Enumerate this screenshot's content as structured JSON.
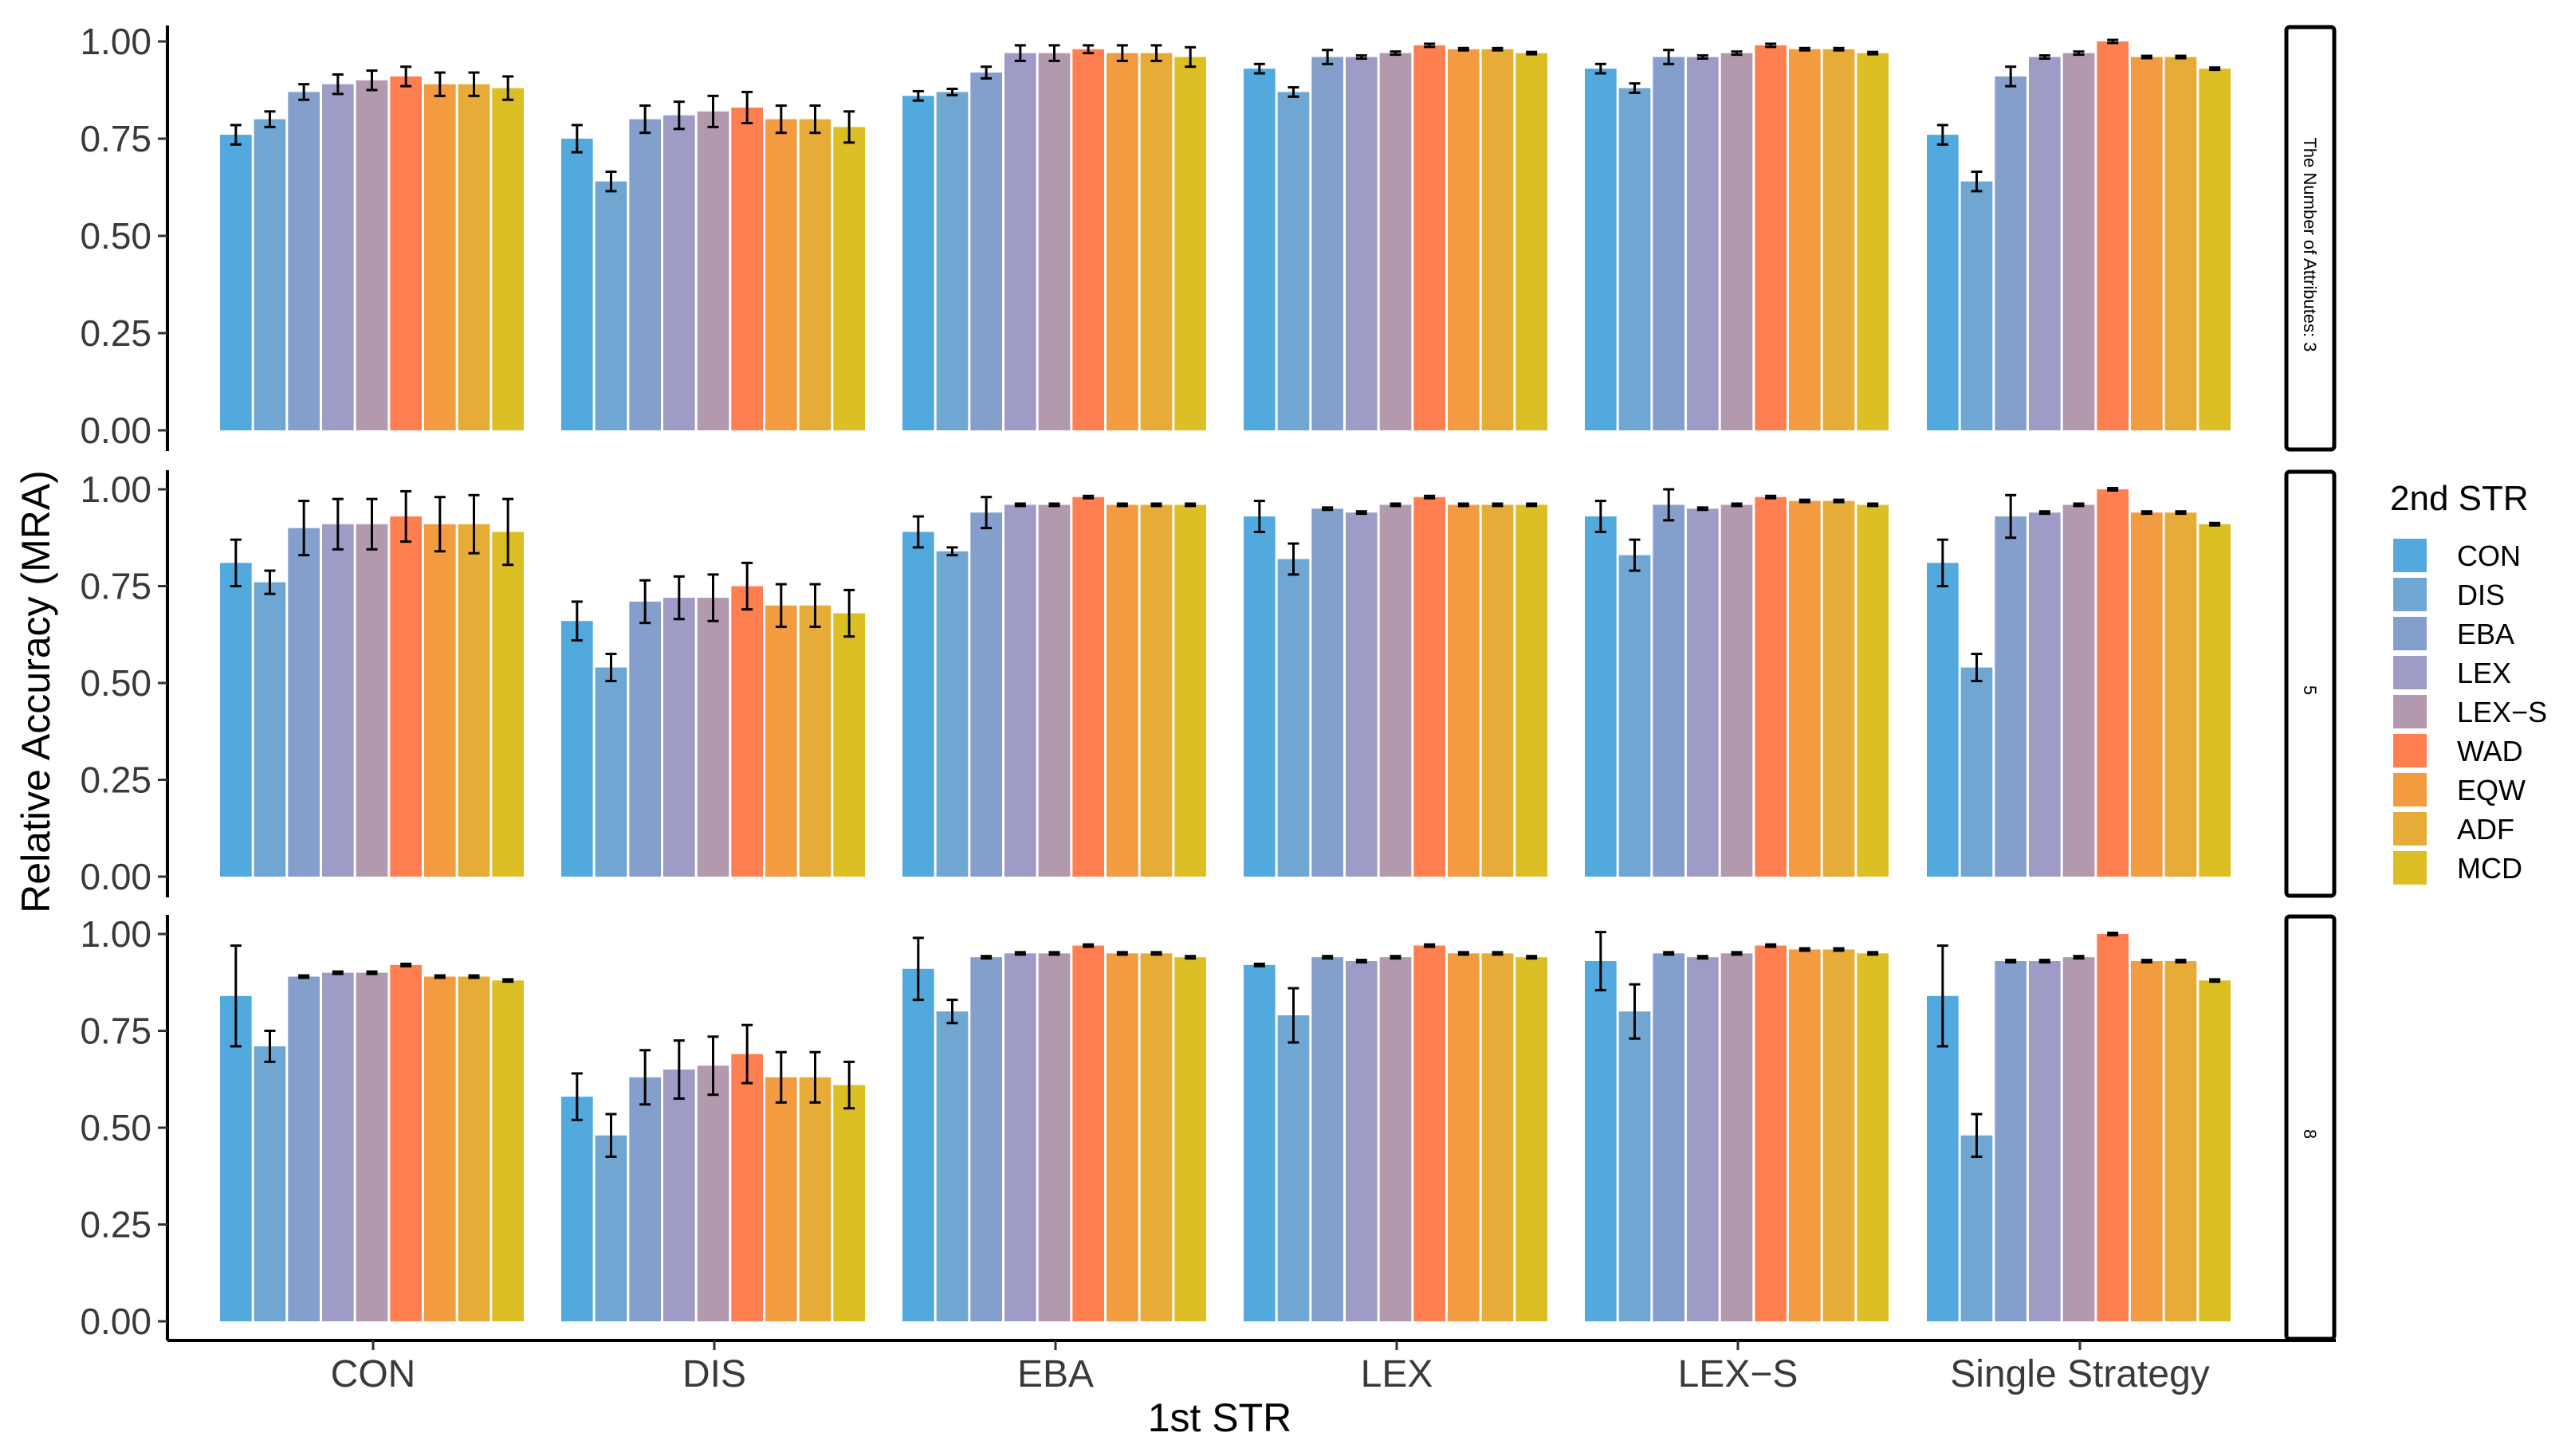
{
  "chart_data": {
    "type": "bar",
    "facet": "rows",
    "xlabel": "1st STR",
    "ylabel": "Relative Accuracy (MRA)",
    "ylim": [
      0,
      1
    ],
    "yticks": [
      "0.00",
      "0.25",
      "0.50",
      "0.75",
      "1.00"
    ],
    "categories": [
      "CON",
      "DIS",
      "EBA",
      "LEX",
      "LEX−S",
      "Single Strategy"
    ],
    "legend": {
      "title": "2nd STR",
      "position": "right",
      "items": [
        {
          "name": "CON",
          "color": "#52A9DD"
        },
        {
          "name": "DIS",
          "color": "#6FA6D2"
        },
        {
          "name": "EBA",
          "color": "#859FCC"
        },
        {
          "name": "LEX",
          "color": "#9E9CC6"
        },
        {
          "name": "LEX−S",
          "color": "#B399AE"
        },
        {
          "name": "WAD",
          "color": "#FF7F50"
        },
        {
          "name": "EQW",
          "color": "#F29B41"
        },
        {
          "name": "ADF",
          "color": "#E6AC37"
        },
        {
          "name": "MCD",
          "color": "#DCBF24"
        }
      ]
    },
    "panels": [
      {
        "strip": "The Number of Attributes: 3",
        "values": [
          [
            0.76,
            0.8,
            0.87,
            0.89,
            0.9,
            0.91,
            0.89,
            0.89,
            0.88
          ],
          [
            0.75,
            0.64,
            0.8,
            0.81,
            0.82,
            0.83,
            0.8,
            0.8,
            0.78
          ],
          [
            0.86,
            0.87,
            0.92,
            0.97,
            0.97,
            0.98,
            0.97,
            0.97,
            0.96
          ],
          [
            0.93,
            0.87,
            0.96,
            0.96,
            0.97,
            0.99,
            0.98,
            0.98,
            0.97
          ],
          [
            0.93,
            0.88,
            0.96,
            0.96,
            0.97,
            0.99,
            0.98,
            0.98,
            0.97
          ],
          [
            0.76,
            0.64,
            0.91,
            0.96,
            0.97,
            1.0,
            0.96,
            0.96,
            0.93
          ]
        ],
        "errors": [
          [
            0.025,
            0.02,
            0.02,
            0.025,
            0.025,
            0.025,
            0.03,
            0.03,
            0.03
          ],
          [
            0.035,
            0.025,
            0.035,
            0.035,
            0.04,
            0.04,
            0.035,
            0.035,
            0.04
          ],
          [
            0.012,
            0.008,
            0.015,
            0.02,
            0.02,
            0.01,
            0.02,
            0.02,
            0.025
          ],
          [
            0.012,
            0.012,
            0.018,
            0.004,
            0.004,
            0.004,
            0.003,
            0.003,
            0.003
          ],
          [
            0.012,
            0.012,
            0.018,
            0.004,
            0.004,
            0.004,
            0.003,
            0.003,
            0.003
          ],
          [
            0.025,
            0.025,
            0.025,
            0.004,
            0.004,
            0.004,
            0.003,
            0.003,
            0.003
          ]
        ]
      },
      {
        "strip": "5",
        "values": [
          [
            0.81,
            0.76,
            0.9,
            0.91,
            0.91,
            0.93,
            0.91,
            0.91,
            0.89
          ],
          [
            0.66,
            0.54,
            0.71,
            0.72,
            0.72,
            0.75,
            0.7,
            0.7,
            0.68
          ],
          [
            0.89,
            0.84,
            0.94,
            0.96,
            0.96,
            0.98,
            0.96,
            0.96,
            0.96
          ],
          [
            0.93,
            0.82,
            0.95,
            0.94,
            0.96,
            0.98,
            0.96,
            0.96,
            0.96
          ],
          [
            0.93,
            0.83,
            0.96,
            0.95,
            0.96,
            0.98,
            0.97,
            0.97,
            0.96
          ],
          [
            0.81,
            0.54,
            0.93,
            0.94,
            0.96,
            1.0,
            0.94,
            0.94,
            0.91
          ]
        ],
        "errors": [
          [
            0.06,
            0.03,
            0.07,
            0.065,
            0.065,
            0.065,
            0.07,
            0.075,
            0.085
          ],
          [
            0.05,
            0.035,
            0.055,
            0.055,
            0.06,
            0.06,
            0.055,
            0.055,
            0.06
          ],
          [
            0.04,
            0.01,
            0.04,
            0.003,
            0.003,
            0.003,
            0.003,
            0.003,
            0.003
          ],
          [
            0.04,
            0.04,
            0.003,
            0.003,
            0.003,
            0.003,
            0.003,
            0.003,
            0.003
          ],
          [
            0.04,
            0.04,
            0.04,
            0.003,
            0.003,
            0.003,
            0.003,
            0.003,
            0.003
          ],
          [
            0.06,
            0.035,
            0.055,
            0.003,
            0.003,
            0.003,
            0.003,
            0.003,
            0.003
          ]
        ]
      },
      {
        "strip": "8",
        "values": [
          [
            0.84,
            0.71,
            0.89,
            0.9,
            0.9,
            0.92,
            0.89,
            0.89,
            0.88
          ],
          [
            0.58,
            0.48,
            0.63,
            0.65,
            0.66,
            0.69,
            0.63,
            0.63,
            0.61
          ],
          [
            0.91,
            0.8,
            0.94,
            0.95,
            0.95,
            0.97,
            0.95,
            0.95,
            0.94
          ],
          [
            0.92,
            0.79,
            0.94,
            0.93,
            0.94,
            0.97,
            0.95,
            0.95,
            0.94
          ],
          [
            0.93,
            0.8,
            0.95,
            0.94,
            0.95,
            0.97,
            0.96,
            0.96,
            0.95
          ],
          [
            0.84,
            0.48,
            0.93,
            0.93,
            0.94,
            1.0,
            0.93,
            0.93,
            0.88
          ]
        ],
        "errors": [
          [
            0.13,
            0.04,
            0.003,
            0.003,
            0.003,
            0.003,
            0.003,
            0.003,
            0.003
          ],
          [
            0.06,
            0.055,
            0.07,
            0.075,
            0.075,
            0.075,
            0.065,
            0.065,
            0.06
          ],
          [
            0.08,
            0.03,
            0.003,
            0.003,
            0.003,
            0.003,
            0.003,
            0.003,
            0.003
          ],
          [
            0.003,
            0.07,
            0.003,
            0.003,
            0.003,
            0.003,
            0.003,
            0.003,
            0.003
          ],
          [
            0.075,
            0.07,
            0.003,
            0.003,
            0.003,
            0.003,
            0.003,
            0.003,
            0.003
          ],
          [
            0.13,
            0.055,
            0.003,
            0.003,
            0.003,
            0.003,
            0.003,
            0.003,
            0.003
          ]
        ]
      }
    ]
  }
}
